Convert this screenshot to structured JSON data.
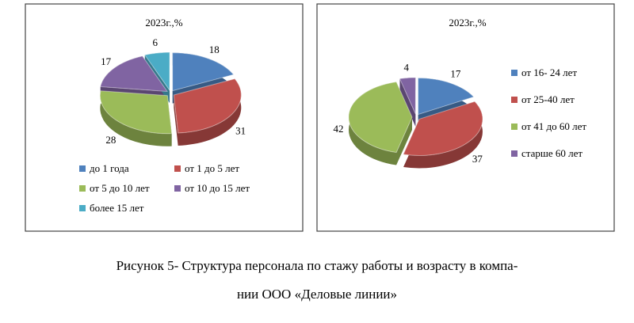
{
  "chart_data": [
    {
      "type": "pie",
      "title": "2023г.,%",
      "categories": [
        "до 1 года",
        "от 1 до 5 лет",
        "от 5 до 10 лет",
        "от 10 до 15 лет",
        "более 15 лет"
      ],
      "values": [
        18,
        31,
        28,
        17,
        6
      ],
      "colors": [
        "#4f81bd",
        "#c0504d",
        "#9bbb59",
        "#8064a2",
        "#4bacc6"
      ],
      "legend": "bottom"
    },
    {
      "type": "pie",
      "title": "2023г.,%",
      "categories": [
        "от 16- 24 лет",
        "от 25-40 лет",
        "от 41 до 60 лет",
        "старше 60 лет"
      ],
      "values": [
        17,
        37,
        42,
        4
      ],
      "colors": [
        "#4f81bd",
        "#c0504d",
        "#9bbb59",
        "#8064a2"
      ],
      "legend": "right"
    }
  ],
  "caption": [
    "Рисунок 5- Структура персонала по стажу работы и возрасту в  компа-",
    "нии ООО «Деловые линии»"
  ]
}
